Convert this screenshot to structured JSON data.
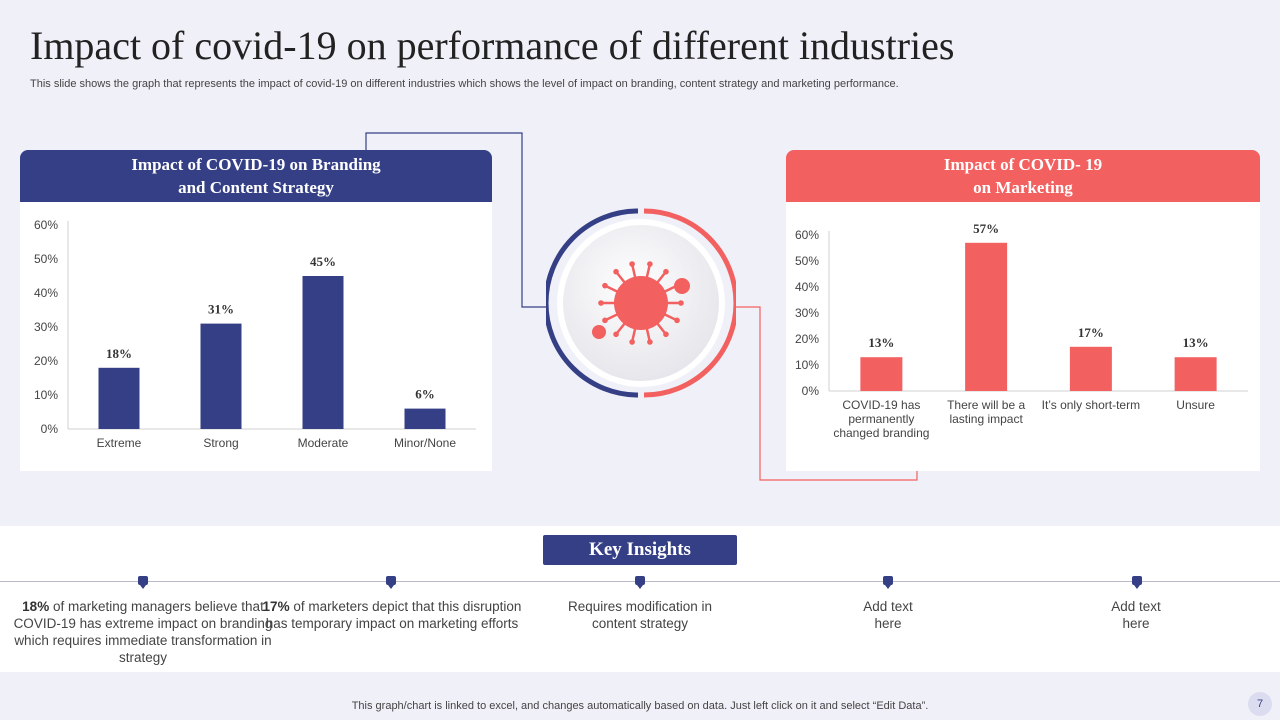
{
  "slide": {
    "title": "Impact of covid-19 on performance of different industries",
    "subtitle": "This slide shows the graph that represents the impact of covid-19 on different industries which shows the level of impact on branding, content strategy and marketing performance.",
    "footer": "This graph/chart is linked to excel,  and changes automatically based on data. Just left click on it and select “Edit Data”.",
    "page_number": "7"
  },
  "colors": {
    "navy": "#353f86",
    "coral": "#f26060"
  },
  "left_panel": {
    "title_line1": "Impact of COVID-19 on Branding",
    "title_line2": "and Content Strategy"
  },
  "right_panel": {
    "title_line1": "Impact of COVID- 19",
    "title_line2": "on Marketing"
  },
  "center_icon": "virus-icon",
  "chart_data": [
    {
      "type": "bar",
      "title": "Impact of COVID-19 on Branding and Content Strategy",
      "categories": [
        "Extreme",
        "Strong",
        "Moderate",
        "Minor/None"
      ],
      "values": [
        18,
        31,
        45,
        6
      ],
      "data_labels": [
        "18%",
        "31%",
        "45%",
        "6%"
      ],
      "y_ticks": [
        "0%",
        "10%",
        "20%",
        "30%",
        "40%",
        "50%",
        "60%"
      ],
      "ylim": [
        0,
        60
      ],
      "xlabel": "",
      "ylabel": "",
      "color": "#353f86"
    },
    {
      "type": "bar",
      "title": "Impact of COVID- 19 on Marketing",
      "categories": [
        [
          "COVID-19 has",
          "permanently",
          "changed branding"
        ],
        [
          "There will be a",
          "lasting impact"
        ],
        [
          "It’s only short-term"
        ],
        [
          "Unsure"
        ]
      ],
      "values": [
        13,
        57,
        17,
        13
      ],
      "data_labels": [
        "13%",
        "57%",
        "17%",
        "13%"
      ],
      "y_ticks": [
        "0%",
        "10%",
        "20%",
        "30%",
        "40%",
        "50%",
        "60%"
      ],
      "ylim": [
        0,
        60
      ],
      "xlabel": "",
      "ylabel": "",
      "color": "#f26060"
    }
  ],
  "insights": {
    "title": "Key Insights",
    "items": [
      {
        "bold": "18%",
        "text": " of marketing managers believe that COVID-19 has extreme impact on branding which requires immediate transformation in strategy"
      },
      {
        "bold": "17%",
        "text": " of marketers depict that this disruption has temporary impact on marketing efforts"
      },
      {
        "bold": "",
        "text": "Requires modification in content strategy"
      },
      {
        "bold": "",
        "text": "Add text here"
      },
      {
        "bold": "",
        "text": "Add text here"
      }
    ]
  }
}
